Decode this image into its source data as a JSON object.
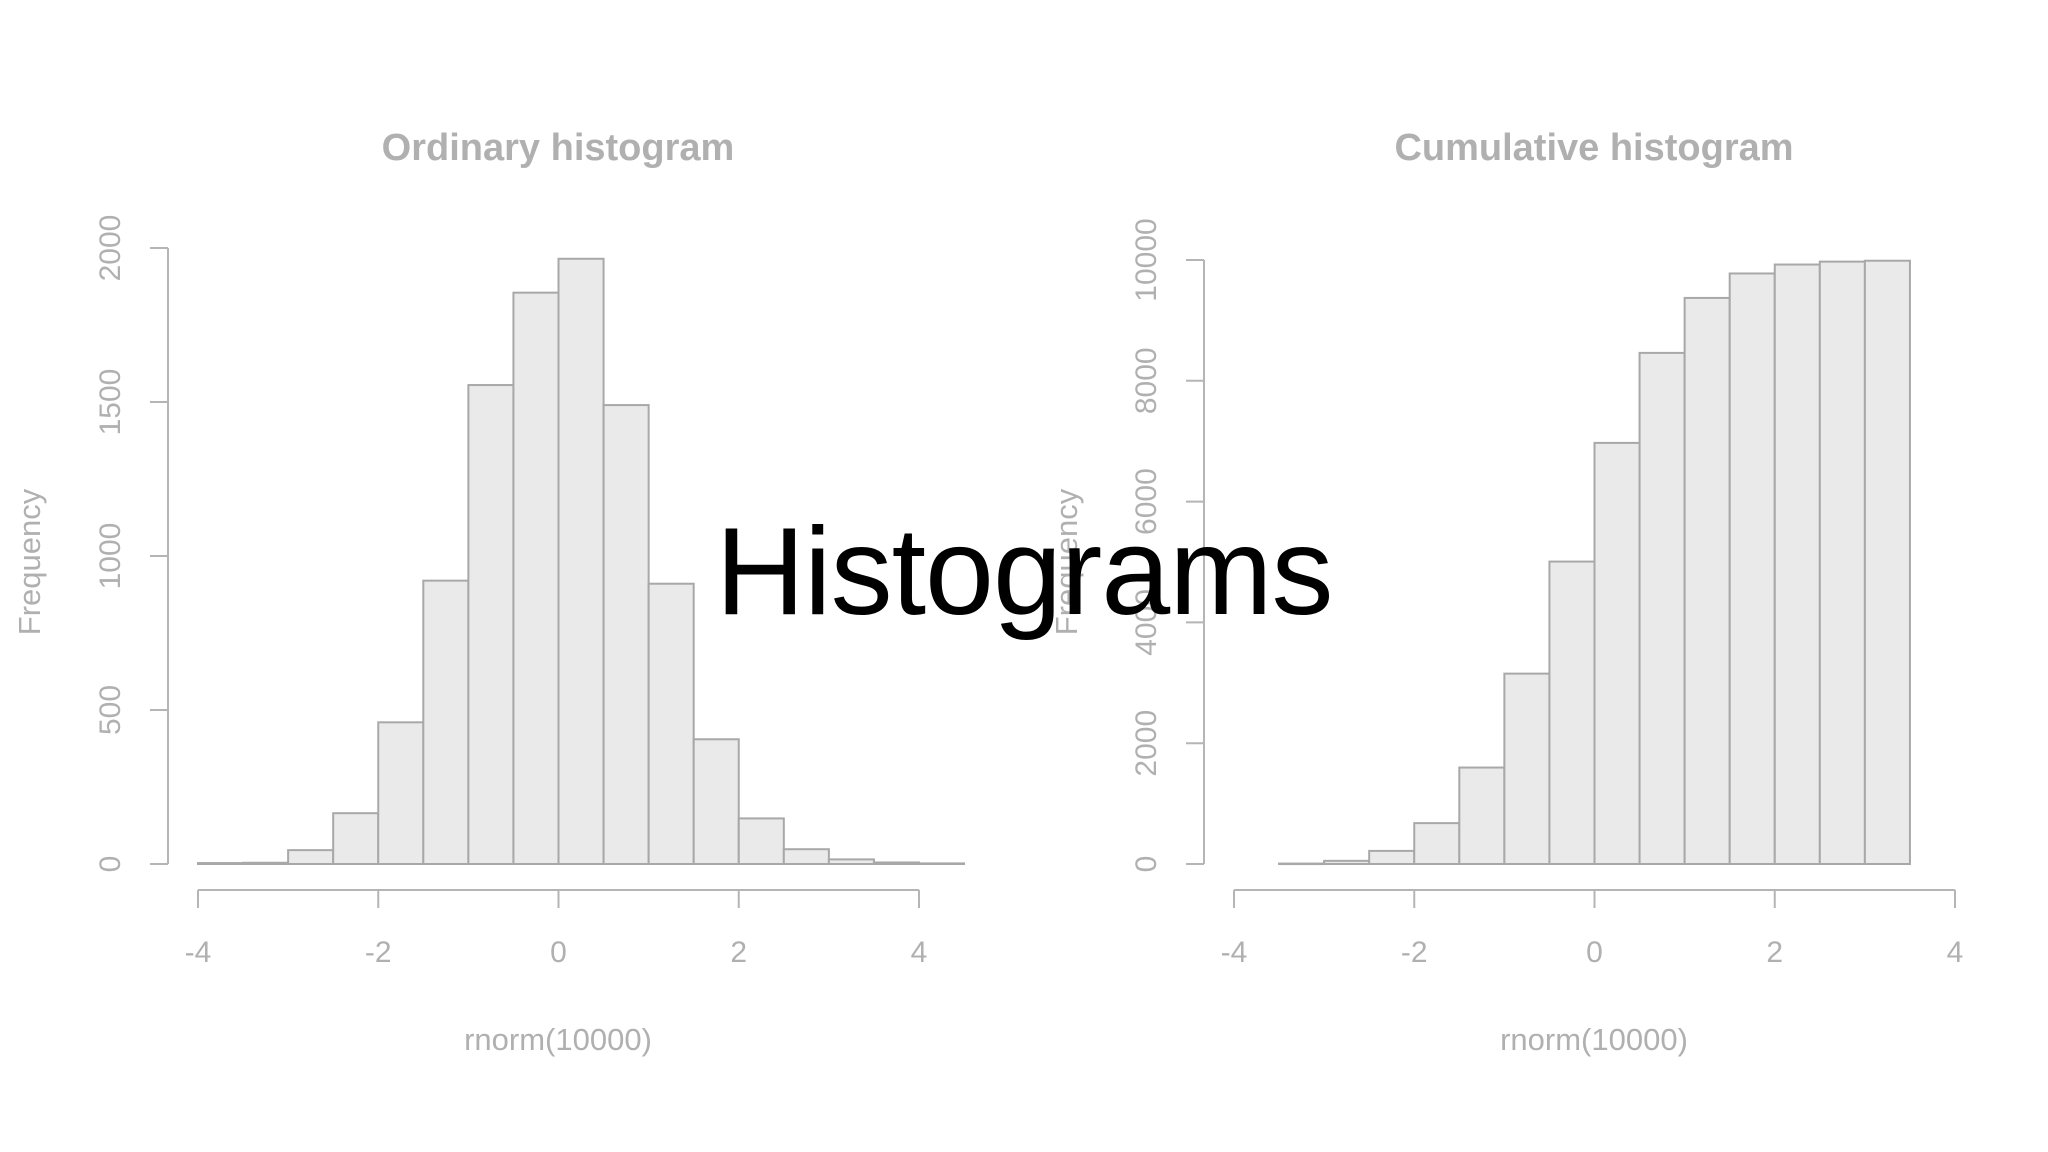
{
  "slide": {
    "title": "Histograms"
  },
  "colors": {
    "axis": "#b5b5b5",
    "text": "#b0b0b0",
    "bar_fill": "#eaeaea",
    "bar_stroke": "#a8a8a8",
    "title": "#000000"
  },
  "chart_data": [
    {
      "type": "bar",
      "title": "Ordinary histogram",
      "xlabel": "rnorm(10000)",
      "ylabel": "Frequency",
      "xlim": [
        -4,
        4
      ],
      "ylim": [
        0,
        2000
      ],
      "x_ticks": [
        "-4",
        "-2",
        "0",
        "2",
        "4"
      ],
      "y_ticks": [
        "0",
        "500",
        "1000",
        "1500",
        "2000"
      ],
      "bin_edges": [
        -4,
        -3.5,
        -3,
        -2.5,
        -2,
        -1.5,
        -1,
        -0.5,
        0,
        0.5,
        1,
        1.5,
        2,
        2.5,
        3,
        3.5,
        4,
        4.5
      ],
      "values": [
        3,
        4,
        45,
        165,
        460,
        920,
        1555,
        1855,
        1965,
        1490,
        910,
        405,
        148,
        48,
        15,
        5,
        2
      ]
    },
    {
      "type": "bar",
      "title": "Cumulative histogram",
      "xlabel": "rnorm(10000)",
      "ylabel": "Frequency",
      "xlim": [
        -4,
        4
      ],
      "ylim": [
        0,
        10000
      ],
      "x_ticks": [
        "-4",
        "-2",
        "0",
        "2",
        "4"
      ],
      "y_ticks": [
        "0",
        "2000",
        "4000",
        "6000",
        "8000",
        "10000"
      ],
      "bin_edges": [
        -3.5,
        -3,
        -2.5,
        -2,
        -1.5,
        -1,
        -0.5,
        0,
        0.5,
        1,
        1.5,
        2,
        2.5,
        3,
        3.5
      ],
      "values": [
        7,
        52,
        217,
        677,
        1597,
        3152,
        5007,
        6972,
        8462,
        9372,
        9777,
        9925,
        9973,
        9988
      ]
    }
  ]
}
